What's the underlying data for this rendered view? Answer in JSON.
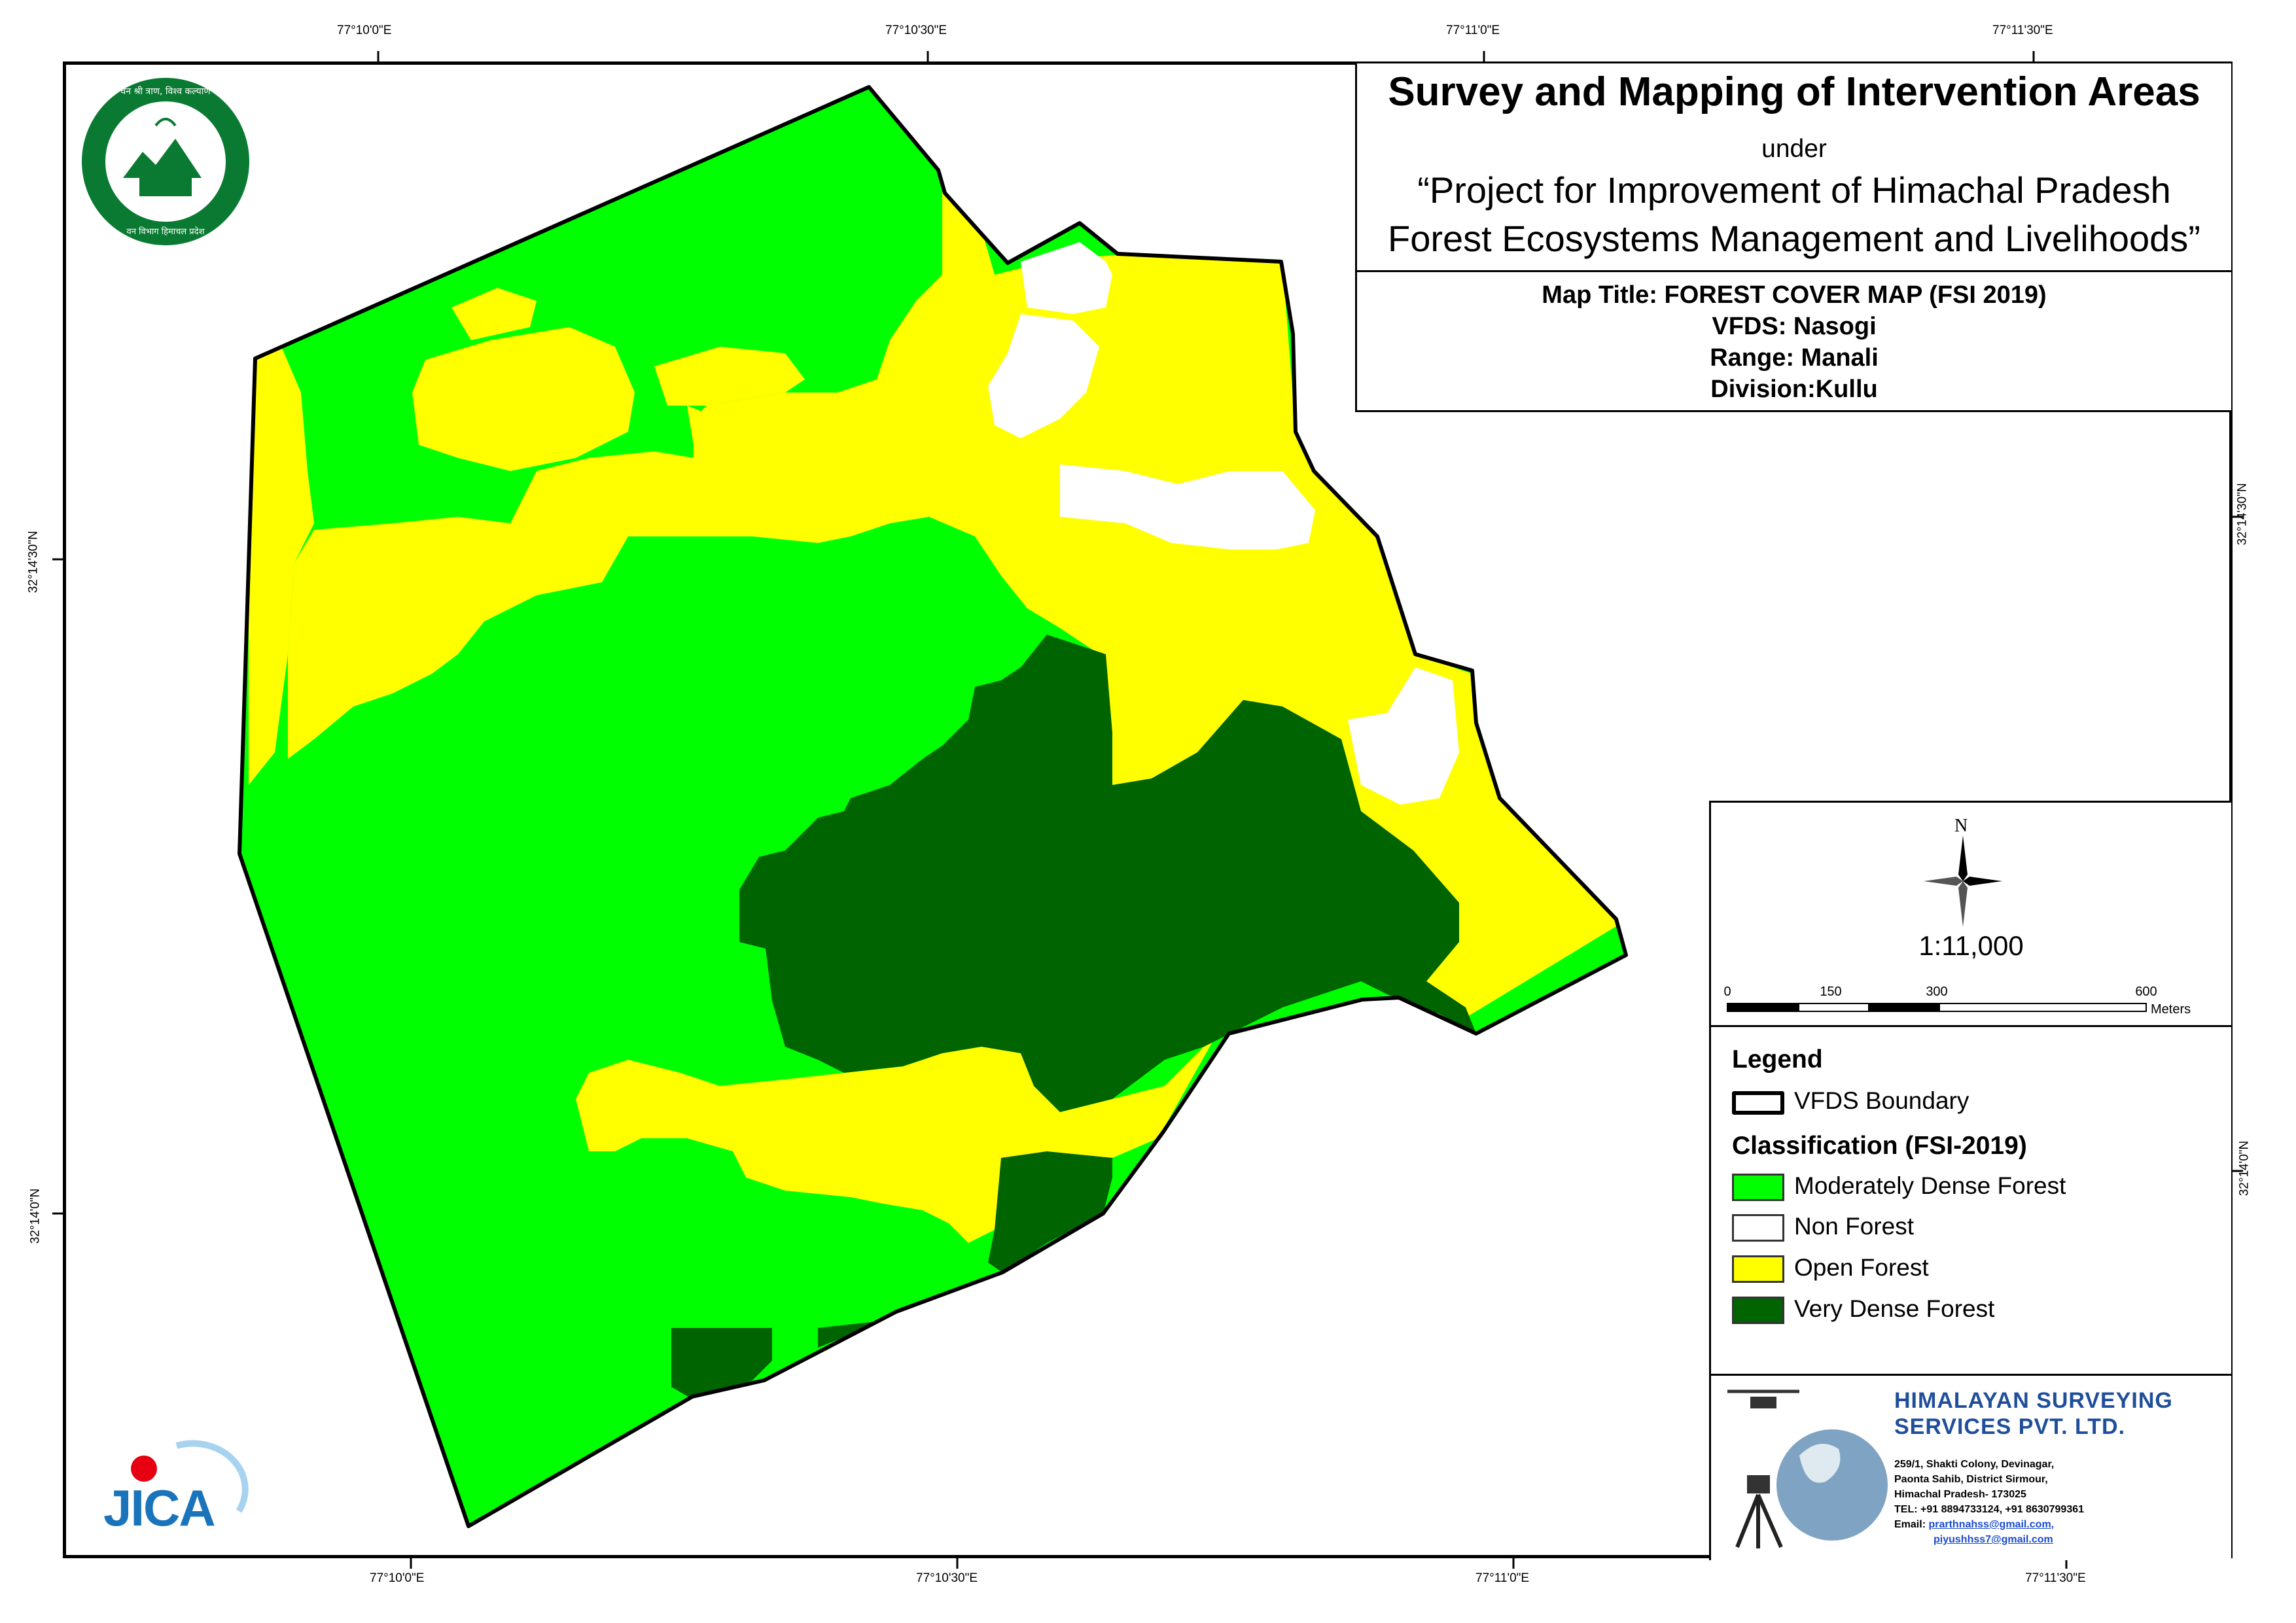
{
  "coords": {
    "top": [
      "77°10'0\"E",
      "77°10'30\"E",
      "77°11'0\"E",
      "77°11'30\"E"
    ],
    "bottom": [
      "77°10'0\"E",
      "77°10'30\"E",
      "77°11'0\"E",
      "77°11'30\"E"
    ],
    "left": [
      "32°14'30\"N",
      "32°14'0\"N"
    ],
    "right": [
      "32°14'30\"N",
      "32°14'0\"N"
    ]
  },
  "title": {
    "main": "Survey and Mapping of Intervention Areas",
    "under": "under",
    "project_line1": "“Project for Improvement of Himachal Pradesh",
    "project_line2": "Forest Ecosystems Management and Livelihoods”"
  },
  "map_info": {
    "map_title": "Map Title: FOREST COVER MAP (FSI 2019)",
    "vfds": "VFDS: Nasogi",
    "range": "Range: Manali",
    "division": "Division:Kullu"
  },
  "north": "N",
  "scale": {
    "ratio": "1:11,000",
    "ticks": [
      "0",
      "150",
      "300",
      "600"
    ],
    "unit": "Meters"
  },
  "legend": {
    "title": "Legend",
    "boundary_label": "VFDS Boundary",
    "classification_title": "Classification (FSI-2019)",
    "items": [
      {
        "label": "Moderately Dense Forest",
        "color": "#00ff00"
      },
      {
        "label": "Non Forest",
        "color": "#ffffff"
      },
      {
        "label": "Open Forest",
        "color": "#ffff00"
      },
      {
        "label": "Very Dense Forest",
        "color": "#006400"
      }
    ]
  },
  "company": {
    "name_line1": "HIMALAYAN SURVEYING",
    "name_line2": "SERVICES PVT. LTD.",
    "addr1": "259/1, Shakti Colony, Devinagar,",
    "addr2": "Paonta Sahib, District Sirmour,",
    "addr3": "Himachal Pradesh- 173025",
    "tel": "TEL: +91 8894733124, +91 8630799361",
    "email_label": "Email: ",
    "email1": "prarthnahss@gmail.com,",
    "email2": "piyushhss7@gmail.com"
  },
  "logos": {
    "hp_forest_text_top": "वन श्री त्राण, विश्व कल्याण",
    "hp_forest_text_bottom": "वन विभाग हिमाचल प्रदेश",
    "jica": "JICA"
  },
  "colors": {
    "moderately_dense": "#00ff00",
    "open": "#ffff00",
    "very_dense": "#006400",
    "non_forest": "#ffffff",
    "company_blue": "#1f4e9b"
  }
}
